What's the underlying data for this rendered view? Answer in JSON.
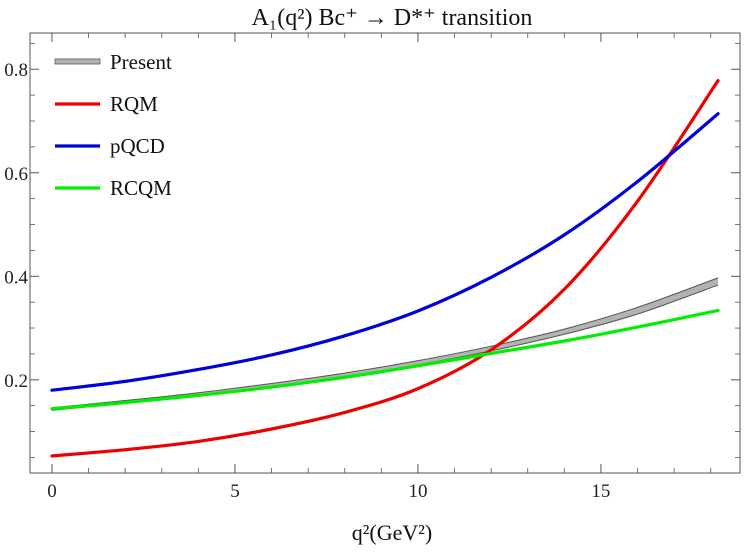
{
  "chart_data": {
    "type": "line",
    "title": "A₁(q²) Bc⁺ → D*⁺ transition",
    "xlabel": "q²(GeV²)",
    "ylabel": "",
    "xlim": [
      -0.6,
      18.8
    ],
    "ylim": [
      0.02,
      0.87
    ],
    "x_ticks": [
      0,
      5,
      10,
      15
    ],
    "y_ticks": [
      0.2,
      0.4,
      0.6,
      0.8
    ],
    "x_tick_labels": [
      "0",
      "5",
      "10",
      "15"
    ],
    "y_tick_labels": [
      "0.2",
      "0.4",
      "0.6",
      "0.8"
    ],
    "grid": false,
    "legend_position": "top-left",
    "x": [
      0,
      2,
      4,
      6,
      8,
      10,
      12,
      14,
      16,
      18.2
    ],
    "series": [
      {
        "name": "Present",
        "kind": "band",
        "color": "#b3b3b3",
        "edge_color": "#555555",
        "upper": [
          0.146,
          0.16,
          0.175,
          0.193,
          0.213,
          0.237,
          0.265,
          0.298,
          0.34,
          0.397
        ],
        "lower": [
          0.141,
          0.155,
          0.169,
          0.187,
          0.206,
          0.229,
          0.256,
          0.288,
          0.327,
          0.383
        ]
      },
      {
        "name": "RQM",
        "color": "#ee0000",
        "values": [
          0.053,
          0.065,
          0.081,
          0.105,
          0.137,
          0.183,
          0.258,
          0.375,
          0.545,
          0.778
        ]
      },
      {
        "name": "pQCD",
        "color": "#0000dd",
        "values": [
          0.18,
          0.197,
          0.22,
          0.248,
          0.285,
          0.333,
          0.398,
          0.48,
          0.583,
          0.714
        ]
      },
      {
        "name": "RCQM",
        "color": "#00ee00",
        "values": [
          0.144,
          0.156,
          0.17,
          0.186,
          0.205,
          0.227,
          0.251,
          0.275,
          0.302,
          0.334
        ]
      }
    ]
  }
}
